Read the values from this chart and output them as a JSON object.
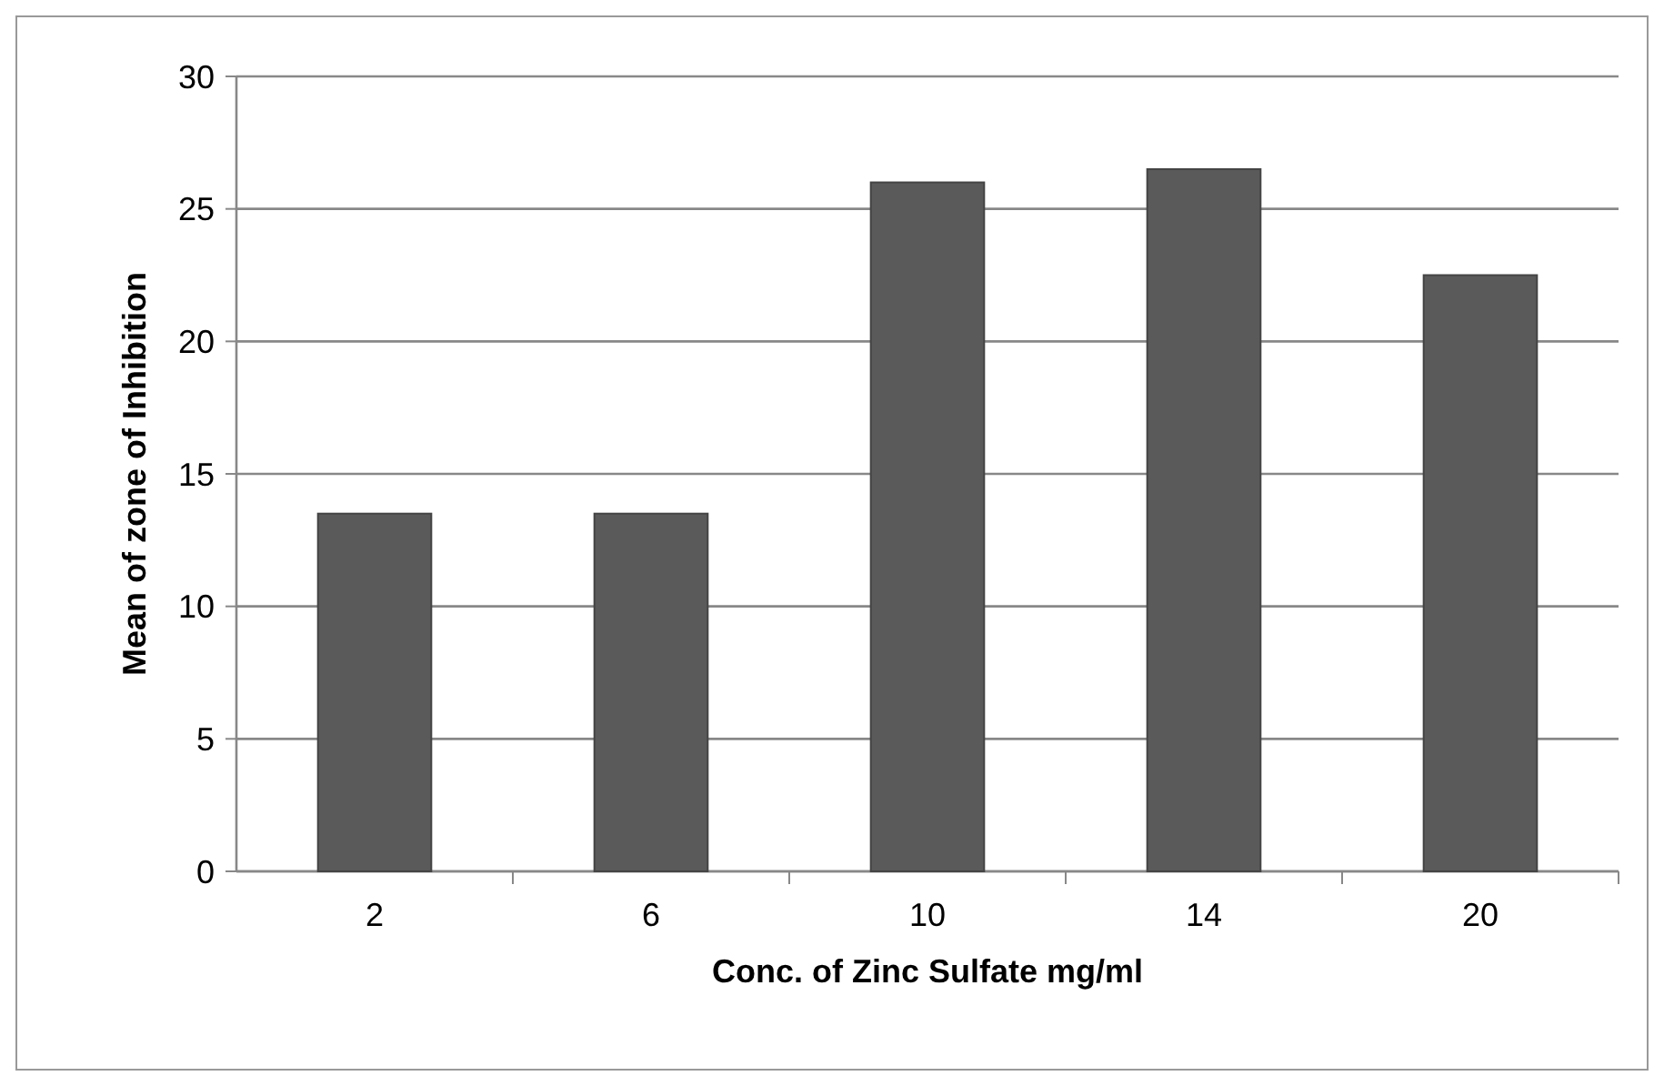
{
  "chart_data": {
    "type": "bar",
    "xlabel": "Conc. of Zinc Sulfate mg/ml",
    "ylabel": "Mean of zone of Inhibition",
    "categories": [
      "2",
      "6",
      "10",
      "14",
      "20"
    ],
    "values": [
      13.5,
      13.5,
      26,
      26.5,
      22.5
    ],
    "color": "#5a5a5a",
    "ylim": [
      0,
      30
    ],
    "yticks": [
      0,
      5,
      10,
      15,
      20,
      25,
      30
    ],
    "grid": "y"
  }
}
